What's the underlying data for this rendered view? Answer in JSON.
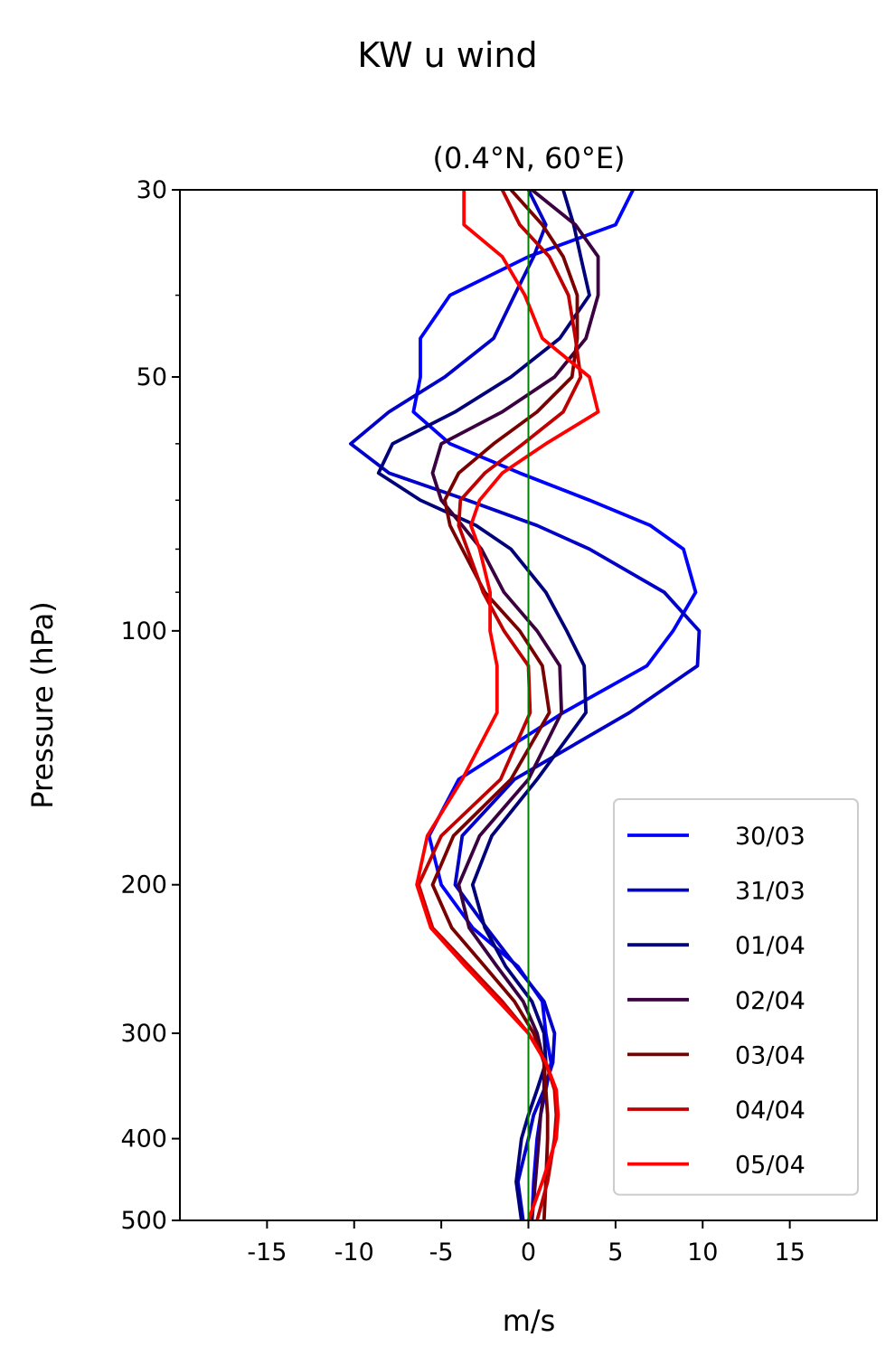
{
  "figure": {
    "suptitle": "KW u wind"
  },
  "chart_data": {
    "type": "line",
    "title": "(0.4°N, 60°E)",
    "xlabel": "m/s",
    "ylabel": "Pressure (hPa)",
    "xlim": [
      -20,
      20
    ],
    "ylim": [
      500,
      30
    ],
    "yscale": "log",
    "xticks": [
      -15,
      -10,
      -5,
      0,
      5,
      10,
      15
    ],
    "xtick_labels": [
      "-15",
      "-10",
      "-5",
      "0",
      "5",
      "10",
      "15"
    ],
    "yticks": [
      30,
      50,
      100,
      200,
      300,
      400,
      500
    ],
    "ytick_labels": [
      "30",
      "50",
      "100",
      "200",
      "300",
      "400",
      "500"
    ],
    "yminor_ticks": [
      40,
      60,
      70,
      80,
      90
    ],
    "grid": false,
    "legend_position": "lower-right",
    "reference_line": {
      "x": 0,
      "color": "#008000"
    },
    "pressure": [
      30,
      33,
      36,
      40,
      45,
      50,
      55,
      60,
      65,
      70,
      75,
      80,
      90,
      100,
      110,
      125,
      150,
      175,
      200,
      225,
      250,
      275,
      300,
      325,
      350,
      375,
      400,
      450,
      500
    ],
    "series": [
      {
        "name": "30/03",
        "color": "#0000ff",
        "values": [
          6.0,
          5.0,
          0.0,
          -4.5,
          -6.2,
          -6.2,
          -6.6,
          -4.5,
          -0.5,
          3.5,
          7.0,
          8.9,
          9.6,
          8.3,
          6.8,
          2.0,
          -4.0,
          -5.7,
          -5.0,
          -3.2,
          -0.6,
          0.8,
          1.0,
          1.3,
          1.0,
          0.7,
          0.5,
          0.3,
          0.2
        ]
      },
      {
        "name": "31/03",
        "color": "#0000c8",
        "values": [
          0.0,
          1.0,
          0.3,
          -0.8,
          -2.0,
          -4.8,
          -8.0,
          -10.2,
          -8.0,
          -3.5,
          0.5,
          3.5,
          7.8,
          9.8,
          9.7,
          5.8,
          -0.8,
          -3.8,
          -4.2,
          -2.4,
          -0.7,
          0.9,
          1.5,
          1.4,
          0.9,
          0.3,
          0.0,
          -0.6,
          -0.3
        ]
      },
      {
        "name": "01/04",
        "color": "#00007b",
        "values": [
          2.0,
          2.6,
          3.0,
          3.5,
          1.8,
          -1.0,
          -4.2,
          -7.8,
          -8.6,
          -6.2,
          -3.0,
          -1.0,
          1.0,
          2.2,
          3.2,
          3.3,
          0.5,
          -2.1,
          -3.2,
          -2.5,
          -1.3,
          0.2,
          0.9,
          1.0,
          0.5,
          0.0,
          -0.4,
          -0.7,
          -0.4
        ]
      },
      {
        "name": "02/04",
        "color": "#3a0040",
        "values": [
          0.2,
          2.7,
          4.0,
          4.0,
          3.3,
          1.5,
          -1.5,
          -5.0,
          -5.5,
          -5.0,
          -3.8,
          -2.7,
          -1.4,
          0.5,
          1.8,
          1.9,
          0.0,
          -2.8,
          -4.0,
          -3.4,
          -1.8,
          -0.3,
          0.5,
          0.9,
          0.9,
          0.7,
          0.6,
          0.4,
          0.2
        ]
      },
      {
        "name": "03/04",
        "color": "#7a0000",
        "values": [
          -1.0,
          0.8,
          2.0,
          2.8,
          2.8,
          2.5,
          0.5,
          -2.0,
          -4.0,
          -4.8,
          -4.5,
          -3.8,
          -2.5,
          -0.5,
          0.8,
          1.2,
          -1.0,
          -4.3,
          -5.5,
          -4.4,
          -2.5,
          -0.8,
          0.3,
          0.9,
          1.0,
          1.1,
          1.1,
          1.0,
          0.9
        ]
      },
      {
        "name": "04/04",
        "color": "#c00000",
        "values": [
          -1.5,
          -0.5,
          1.2,
          2.3,
          2.7,
          3.0,
          2.0,
          -0.3,
          -2.5,
          -3.9,
          -4.0,
          -3.5,
          -2.6,
          -1.4,
          0.0,
          0.1,
          -1.6,
          -5.0,
          -6.3,
          -5.5,
          -3.4,
          -1.5,
          0.0,
          1.0,
          1.5,
          1.6,
          1.5,
          1.1,
          0.5
        ]
      },
      {
        "name": "05/04",
        "color": "#ff0000",
        "values": [
          -3.7,
          -3.7,
          -1.5,
          -0.2,
          0.8,
          3.5,
          4.0,
          1.0,
          -1.5,
          -2.8,
          -3.3,
          -2.8,
          -2.2,
          -2.2,
          -1.8,
          -1.8,
          -3.8,
          -5.8,
          -6.4,
          -5.6,
          -3.6,
          -1.7,
          0.0,
          1.0,
          1.6,
          1.7,
          1.6,
          0.8,
          0.0
        ]
      }
    ]
  }
}
